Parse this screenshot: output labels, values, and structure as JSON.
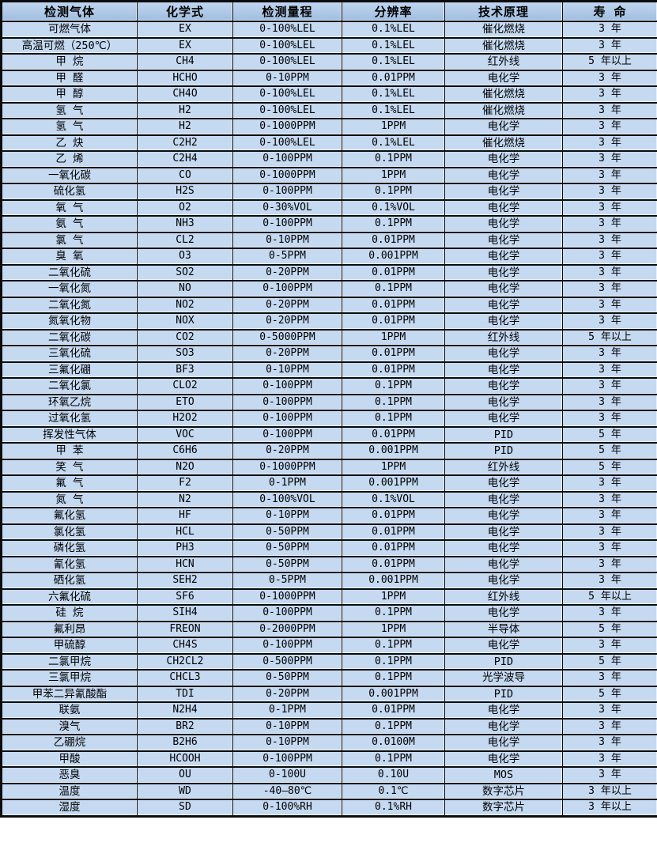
{
  "colors": {
    "header_bg_top": "#c0d5ee",
    "header_bg_bottom": "#9fbde0",
    "row_bg": "#c5d9f1",
    "border_color": "#0c0c0c",
    "hairline": "#eaf1fa",
    "text_color": "#000000"
  },
  "table": {
    "headers": [
      "检测气体",
      "化学式",
      "检测量程",
      "分辨率",
      "技术原理",
      "寿 命"
    ],
    "rows": [
      [
        "可燃气体",
        "EX",
        "0-100%LEL",
        "0.1%LEL",
        "催化燃烧",
        "3 年"
      ],
      [
        "高温可燃（250℃）",
        "EX",
        "0-100%LEL",
        "0.1%LEL",
        "催化燃烧",
        "3 年"
      ],
      [
        "甲 烷",
        "CH4",
        "0-100%LEL",
        "0.1%LEL",
        "红外线",
        "5 年以上"
      ],
      [
        "甲 醛",
        "HCHO",
        "0-10PPM",
        "0.01PPM",
        "电化学",
        "3 年"
      ],
      [
        "甲 醇",
        "CH4O",
        "0-100%LEL",
        "0.1%LEL",
        "催化燃烧",
        "3 年"
      ],
      [
        "氢 气",
        "H2",
        "0-100%LEL",
        "0.1%LEL",
        "催化燃烧",
        "3 年"
      ],
      [
        "氢 气",
        "H2",
        "0-1000PPM",
        "1PPM",
        "电化学",
        "3 年"
      ],
      [
        "乙 炔",
        "C2H2",
        "0-100%LEL",
        "0.1%LEL",
        "催化燃烧",
        "3 年"
      ],
      [
        "乙 烯",
        "C2H4",
        "0-100PPM",
        "0.1PPM",
        "电化学",
        "3 年"
      ],
      [
        "一氧化碳",
        "CO",
        "0-1000PPM",
        "1PPM",
        "电化学",
        "3 年"
      ],
      [
        "硫化氢",
        "H2S",
        "0-100PPM",
        "0.1PPM",
        "电化学",
        "3 年"
      ],
      [
        "氧 气",
        "O2",
        "0-30%VOL",
        "0.1%VOL",
        "电化学",
        "3 年"
      ],
      [
        "氨 气",
        "NH3",
        "0-100PPM",
        "0.1PPM",
        "电化学",
        "3 年"
      ],
      [
        "氯 气",
        "CL2",
        "0-10PPM",
        "0.01PPM",
        "电化学",
        "3 年"
      ],
      [
        "臭 氧",
        "O3",
        "0-5PPM",
        "0.001PPM",
        "电化学",
        "3 年"
      ],
      [
        "二氧化硫",
        "SO2",
        "0-20PPM",
        "0.01PPM",
        "电化学",
        "3 年"
      ],
      [
        "一氧化氮",
        "NO",
        "0-100PPM",
        "0.1PPM",
        "电化学",
        "3 年"
      ],
      [
        "二氧化氮",
        "NO2",
        "0-20PPM",
        "0.01PPM",
        "电化学",
        "3 年"
      ],
      [
        "氮氧化物",
        "NOX",
        "0-20PPM",
        "0.01PPM",
        "电化学",
        "3 年"
      ],
      [
        "二氧化碳",
        "CO2",
        "0-5000PPM",
        "1PPM",
        "红外线",
        "5 年以上"
      ],
      [
        "三氧化硫",
        "SO3",
        "0-20PPM",
        "0.01PPM",
        "电化学",
        "3 年"
      ],
      [
        "三氟化硼",
        "BF3",
        "0-10PPM",
        "0.01PPM",
        "电化学",
        "3 年"
      ],
      [
        "二氧化氯",
        "CLO2",
        "0-100PPM",
        "0.1PPM",
        "电化学",
        "3 年"
      ],
      [
        "环氧乙烷",
        "ETO",
        "0-100PPM",
        "0.1PPM",
        "电化学",
        "3 年"
      ],
      [
        "过氧化氢",
        "H2O2",
        "0-100PPM",
        "0.1PPM",
        "电化学",
        "3 年"
      ],
      [
        "挥发性气体",
        "VOC",
        "0-100PPM",
        "0.01PPM",
        "PID",
        "5 年"
      ],
      [
        "甲 苯",
        "C6H6",
        "0-20PPM",
        "0.001PPM",
        "PID",
        "5 年"
      ],
      [
        "笑 气",
        "N2O",
        "0-1000PPM",
        "1PPM",
        "红外线",
        "5 年"
      ],
      [
        "氟 气",
        "F2",
        "0-1PPM",
        "0.001PPM",
        "电化学",
        "3 年"
      ],
      [
        "氮 气",
        "N2",
        "0-100%VOL",
        "0.1%VOL",
        "电化学",
        "3 年"
      ],
      [
        "氟化氢",
        "HF",
        "0-10PPM",
        "0.01PPM",
        "电化学",
        "3 年"
      ],
      [
        "氯化氢",
        "HCL",
        "0-50PPM",
        "0.01PPM",
        "电化学",
        "3 年"
      ],
      [
        "磷化氢",
        "PH3",
        "0-50PPM",
        "0.01PPM",
        "电化学",
        "3 年"
      ],
      [
        "氰化氢",
        "HCN",
        "0-50PPM",
        "0.01PPM",
        "电化学",
        "3 年"
      ],
      [
        "硒化氢",
        "SEH2",
        "0-5PPM",
        "0.001PPM",
        "电化学",
        "3 年"
      ],
      [
        "六氟化硫",
        "SF6",
        "0-1000PPM",
        "1PPM",
        "红外线",
        "5 年以上"
      ],
      [
        "硅 烷",
        "SIH4",
        "0-100PPM",
        "0.1PPM",
        "电化学",
        "3 年"
      ],
      [
        "氟利昂",
        "FREON",
        "0-2000PPM",
        "1PPM",
        "半导体",
        "5 年"
      ],
      [
        "甲硫醇",
        "CH4S",
        "0-100PPM",
        "0.1PPM",
        "电化学",
        "3 年"
      ],
      [
        "二氯甲烷",
        "CH2CL2",
        "0-500PPM",
        "0.1PPM",
        "PID",
        "5 年"
      ],
      [
        "三氯甲烷",
        "CHCL3",
        "0-50PPM",
        "0.1PPM",
        "光学波导",
        "3 年"
      ],
      [
        "甲苯二异氰酸酯",
        "TDI",
        "0-20PPM",
        "0.001PPM",
        "PID",
        "5 年"
      ],
      [
        "联氨",
        "N2H4",
        "0-1PPM",
        "0.01PPM",
        "电化学",
        "3 年"
      ],
      [
        "溴气",
        "BR2",
        "0-10PPM",
        "0.1PPM",
        "电化学",
        "3 年"
      ],
      [
        "乙硼烷",
        "B2H6",
        "0-10PPM",
        "0.0100M",
        "电化学",
        "3 年"
      ],
      [
        "甲酸",
        "HCOOH",
        "0-100PPM",
        "0.1PPM",
        "电化学",
        "3 年"
      ],
      [
        "恶臭",
        "OU",
        "0-100U",
        "0.10U",
        "MOS",
        "3 年"
      ],
      [
        "温度",
        "WD",
        "-40—80℃",
        "0.1℃",
        "数字芯片",
        "3 年以上"
      ],
      [
        "湿度",
        "SD",
        "0-100%RH",
        "0.1%RH",
        "数字芯片",
        "3 年以上"
      ]
    ]
  }
}
